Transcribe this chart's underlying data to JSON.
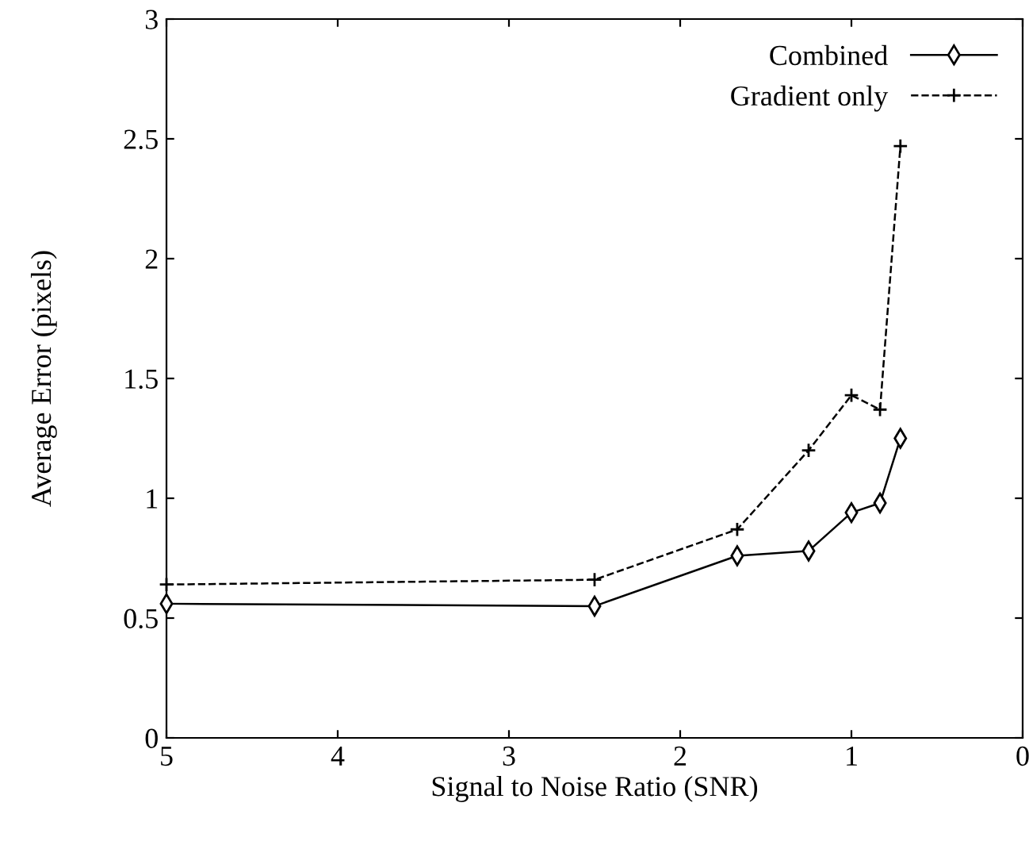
{
  "chart_data": {
    "type": "line",
    "xlabel": "Signal to Noise Ratio (SNR)",
    "ylabel": "Average Error (pixels)",
    "x": [
      5,
      2.5,
      1.667,
      1.25,
      1,
      0.833,
      0.714
    ],
    "series": [
      {
        "name": "Combined",
        "color": "#000000",
        "values": [
          0.56,
          0.55,
          0.76,
          0.78,
          0.94,
          0.98,
          1.25
        ],
        "marker": "diamond",
        "line_style": "solid"
      },
      {
        "name": "Gradient only",
        "color": "#000000",
        "values": [
          0.64,
          0.66,
          0.87,
          1.2,
          1.43,
          1.37,
          2.47
        ],
        "marker": "cross",
        "line_style": "dashed"
      }
    ],
    "xlim": [
      5,
      0
    ],
    "ylim": [
      0,
      3
    ],
    "xticks": [
      5,
      4,
      3,
      2,
      1,
      0
    ],
    "yticks": [
      0,
      0.5,
      1,
      1.5,
      2,
      2.5,
      3
    ],
    "grid": false,
    "legend": "top right"
  }
}
